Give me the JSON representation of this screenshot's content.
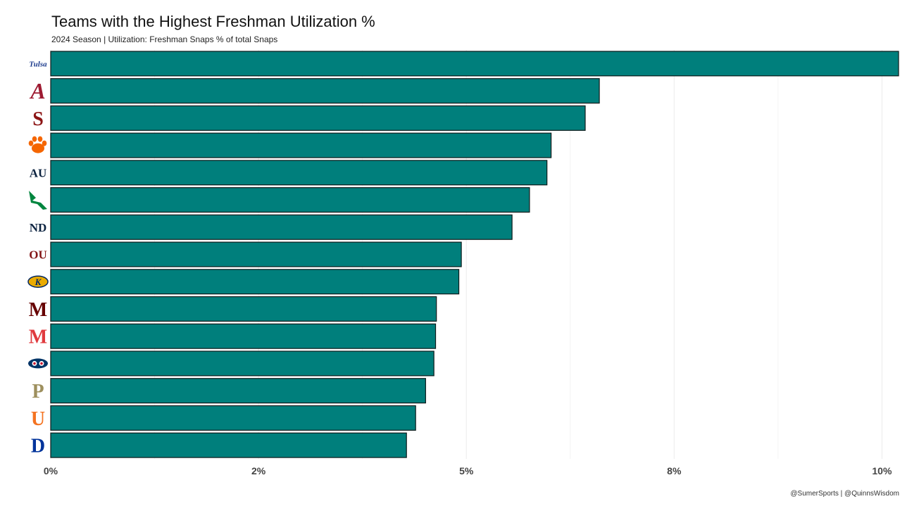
{
  "title": "Teams with the Highest Freshman Utilization %",
  "subtitle": "2024 Season | Utilization: Freshman Snaps % of total Snaps",
  "caption": "@SumerSports | @QuinnsWisdom",
  "colors": {
    "bar_fill": "#007f7c",
    "bar_stroke": "#0d1a1a",
    "grid": "#ebebeb"
  },
  "chart_data": {
    "type": "bar",
    "orientation": "horizontal",
    "categories": [
      "Tulsa",
      "Alabama",
      "Stanford",
      "Clemson",
      "Auburn",
      "North Texas",
      "Notre Dame",
      "Oklahoma",
      "Kent State",
      "Mississippi State",
      "Maryland",
      "Florida Atlantic",
      "Purdue",
      "Miami",
      "Duke"
    ],
    "values": [
      10.2,
      6.6,
      6.43,
      6.02,
      5.97,
      5.76,
      5.55,
      4.94,
      4.91,
      4.64,
      4.63,
      4.61,
      4.51,
      4.39,
      4.28
    ],
    "unit": "%",
    "xlim": [
      0,
      10.2
    ],
    "x_ticks": [
      0,
      2.5,
      5,
      7.5,
      10
    ],
    "x_tick_labels": [
      "0%",
      "2%",
      "5%",
      "8%",
      "10%"
    ],
    "grid": true,
    "category_labels_shown_as": "team logos",
    "logos": [
      {
        "name": "tulsa-logo",
        "text": "Tulsa",
        "color": "#1b3a8c",
        "bg": "none"
      },
      {
        "name": "alabama-logo",
        "text": "A",
        "color": "#9e1b32",
        "bg": "none"
      },
      {
        "name": "stanford-logo",
        "text": "S",
        "color": "#8c1515",
        "bg": "none"
      },
      {
        "name": "clemson-logo",
        "text": "",
        "color": "#f56600",
        "bg": "none"
      },
      {
        "name": "auburn-logo",
        "text": "AU",
        "color": "#0c2340",
        "bg": "none"
      },
      {
        "name": "north-texas-logo",
        "text": "",
        "color": "#00853e",
        "bg": "none"
      },
      {
        "name": "notre-dame-logo",
        "text": "ND",
        "color": "#0c2340",
        "bg": "none"
      },
      {
        "name": "oklahoma-logo",
        "text": "OU",
        "color": "#841617",
        "bg": "none"
      },
      {
        "name": "kent-state-logo",
        "text": "K",
        "color": "#002664",
        "bg": "#eaab00"
      },
      {
        "name": "mississippi-state-logo",
        "text": "M",
        "color": "#660000",
        "bg": "none"
      },
      {
        "name": "maryland-logo",
        "text": "M",
        "color": "#e03a3e",
        "bg": "none"
      },
      {
        "name": "florida-atlantic-logo",
        "text": "",
        "color": "#003366",
        "bg": "none"
      },
      {
        "name": "purdue-logo",
        "text": "P",
        "color": "#9d8f5d",
        "bg": "none"
      },
      {
        "name": "miami-logo",
        "text": "U",
        "color": "#f47321",
        "bg": "none"
      },
      {
        "name": "duke-logo",
        "text": "D",
        "color": "#00339b",
        "bg": "none"
      }
    ]
  }
}
